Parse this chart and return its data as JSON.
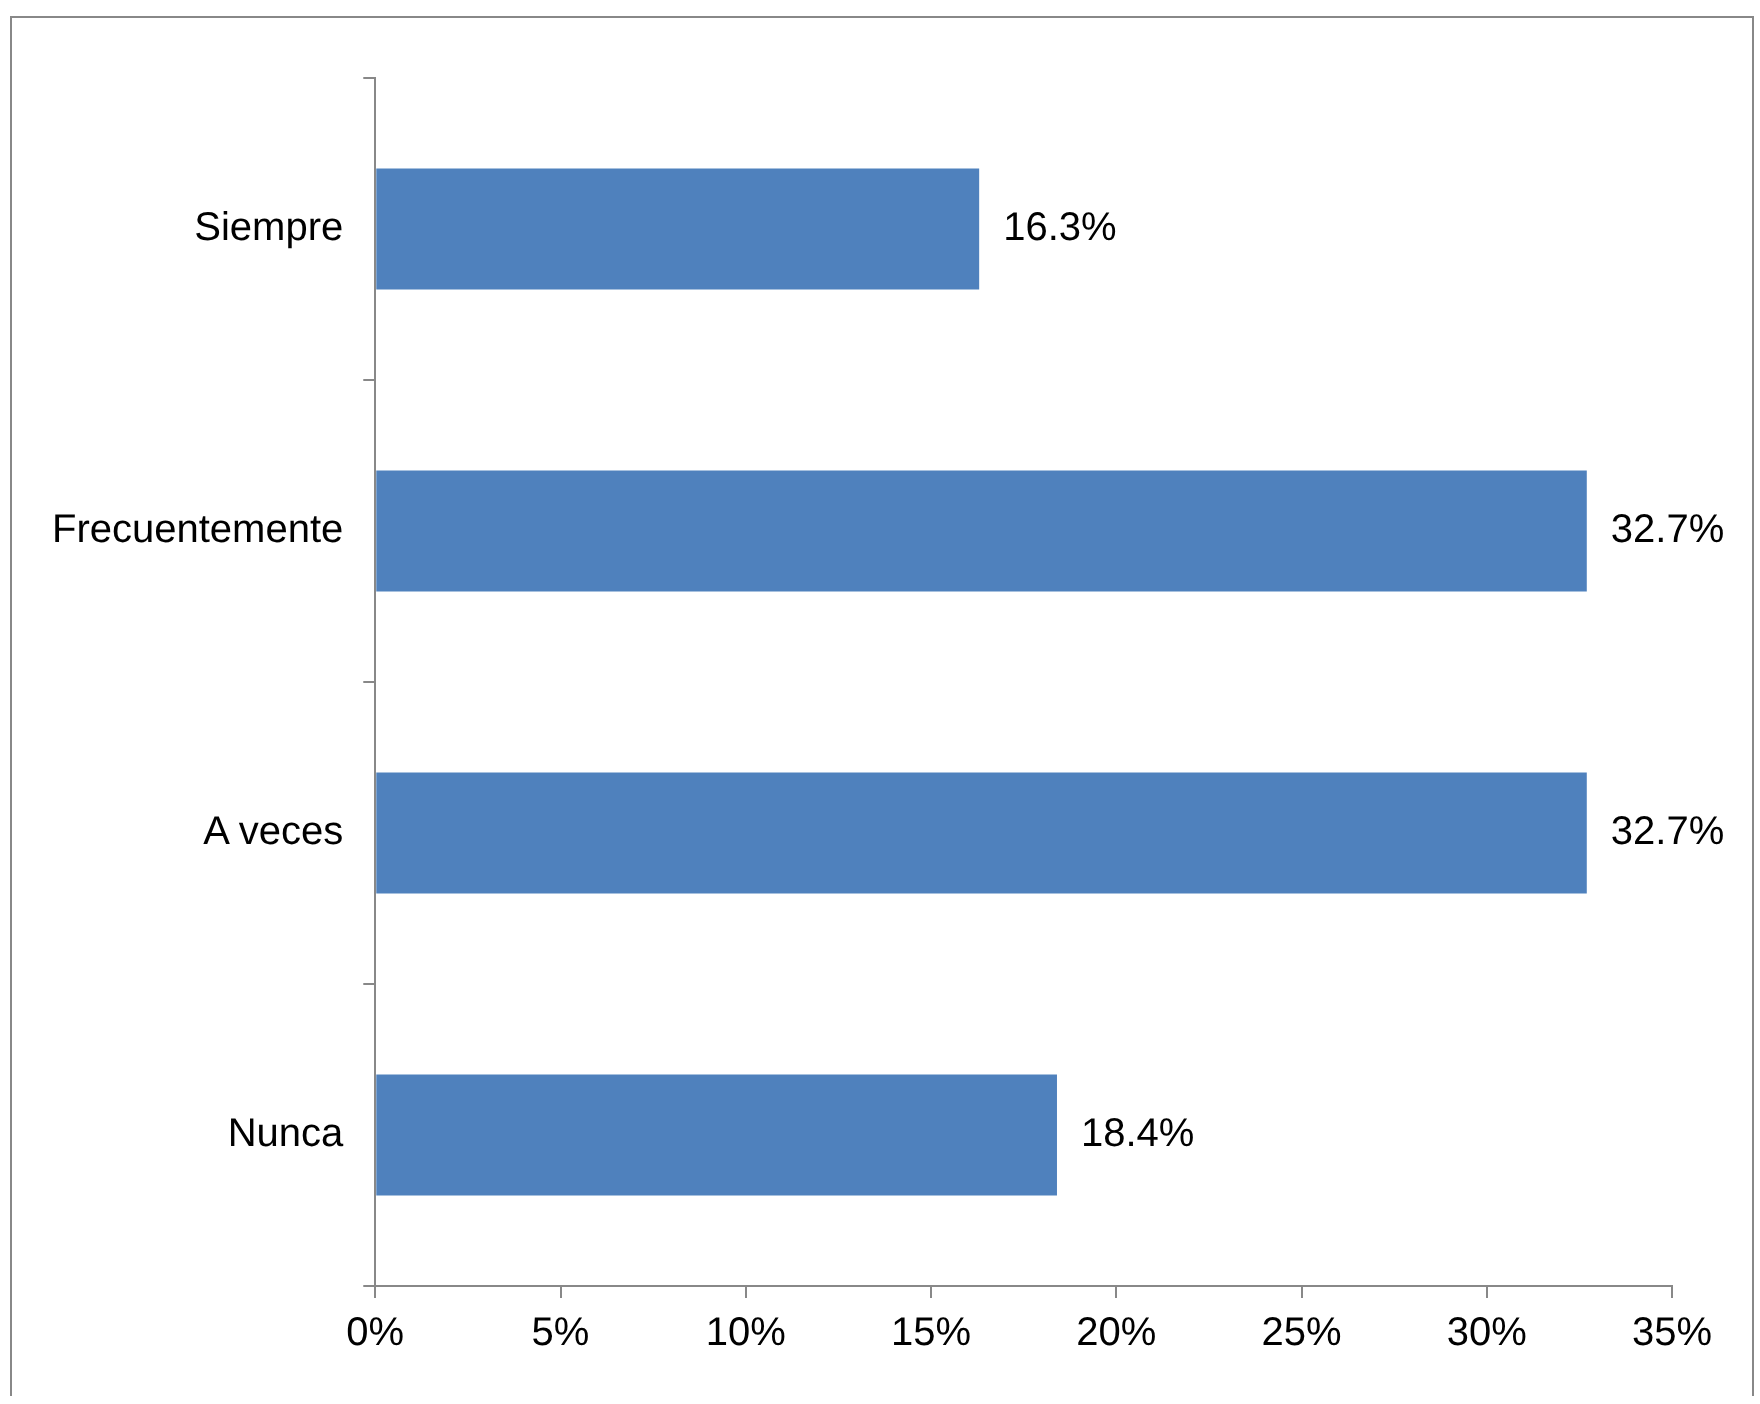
{
  "chart_data": {
    "type": "bar",
    "orientation": "horizontal",
    "categories": [
      "Siempre",
      "Frecuentemente",
      "A veces",
      "Nunca"
    ],
    "values": [
      16.3,
      32.7,
      32.7,
      18.4
    ],
    "value_labels": [
      "16.3%",
      "32.7%",
      "32.7%",
      "18.4%"
    ],
    "color": "#4f81bd",
    "xlim": [
      0,
      35
    ],
    "xticks": [
      {
        "value": 0,
        "label": "0%"
      },
      {
        "value": 5,
        "label": "5%"
      },
      {
        "value": 10,
        "label": "10%"
      },
      {
        "value": 15,
        "label": "15%"
      },
      {
        "value": 20,
        "label": "20%"
      },
      {
        "value": 25,
        "label": "25%"
      },
      {
        "value": 30,
        "label": "30%"
      },
      {
        "value": 35,
        "label": "35%"
      }
    ]
  }
}
